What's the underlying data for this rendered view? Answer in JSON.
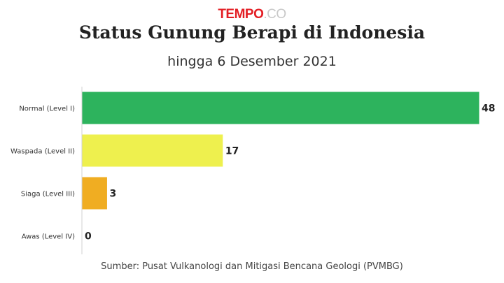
{
  "logo": {
    "brand": "TEMPO",
    "suffix": ".CO"
  },
  "header": {
    "title": "Status Gunung Berapi di Indonesia",
    "subtitle": "hingga 6 Desember 2021"
  },
  "footer": {
    "source": "Sumber: Pusat Vulkanologi dan Mitigasi Bencana Geologi (PVMBG)"
  },
  "chart_data": {
    "type": "bar",
    "orientation": "horizontal",
    "categories": [
      "Normal (Level I)",
      "Waspada (Level II)",
      "Siaga (Level III)",
      "Awas (Level IV)"
    ],
    "values": [
      48,
      17,
      3,
      0
    ],
    "colors": [
      "#2db35d",
      "#eef04e",
      "#f0ad22",
      "#d9342b"
    ],
    "xlim": [
      0,
      48
    ],
    "grid": false,
    "legend": "none"
  }
}
